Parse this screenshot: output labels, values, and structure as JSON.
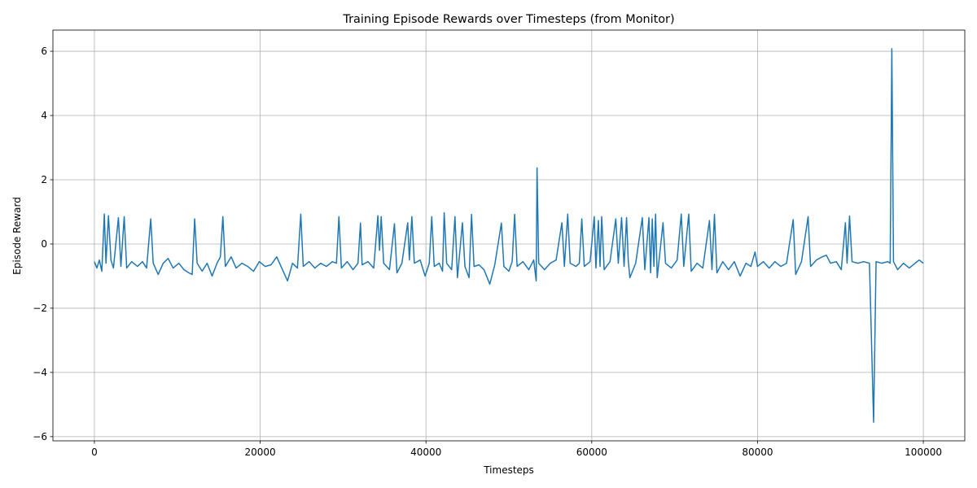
{
  "chart_data": {
    "type": "line",
    "title": "Training Episode Rewards over Timesteps (from Monitor)",
    "x_label": "Timesteps",
    "y_label": "Episode Reward",
    "color": "#1f77b4",
    "grid": true,
    "xlim": [
      -5000,
      105000
    ],
    "ylim": [
      -6.13,
      6.66
    ],
    "xticks": [
      0,
      20000,
      40000,
      60000,
      80000,
      100000
    ],
    "yticks": [
      {
        "value": -6,
        "label": "−6"
      },
      {
        "value": -4,
        "label": "−4"
      },
      {
        "value": -2,
        "label": "−2"
      },
      0,
      2,
      4,
      6
    ],
    "x": [
      0,
      300,
      600,
      900,
      1200,
      1400,
      1700,
      2000,
      2300,
      2900,
      3200,
      3600,
      3900,
      4500,
      5200,
      5800,
      6300,
      6800,
      7100,
      7700,
      8300,
      8900,
      9500,
      10200,
      10800,
      11400,
      11800,
      12100,
      12400,
      13000,
      13600,
      14200,
      14800,
      15200,
      15500,
      15800,
      16500,
      17100,
      17800,
      18500,
      19200,
      19900,
      20600,
      21300,
      22000,
      22600,
      23300,
      23900,
      24500,
      24900,
      25200,
      25900,
      26600,
      27300,
      28000,
      28700,
      29200,
      29500,
      29800,
      30500,
      31200,
      31800,
      32100,
      32300,
      33000,
      33700,
      34200,
      34400,
      34600,
      34900,
      35600,
      36200,
      36500,
      37100,
      37800,
      38000,
      38300,
      38600,
      39300,
      39900,
      40400,
      40700,
      41000,
      41600,
      42000,
      42200,
      42500,
      43100,
      43500,
      43800,
      44400,
      44700,
      45200,
      45500,
      45800,
      46400,
      47000,
      47700,
      48300,
      49100,
      49400,
      50000,
      50400,
      50700,
      51000,
      51700,
      52400,
      53000,
      53300,
      53400,
      53600,
      54300,
      55000,
      55700,
      56400,
      56700,
      57100,
      57400,
      58100,
      58500,
      58800,
      59100,
      59800,
      60300,
      60500,
      60800,
      61000,
      61200,
      61500,
      62200,
      62900,
      63200,
      63600,
      63900,
      64200,
      64400,
      64600,
      65300,
      66100,
      66400,
      66900,
      67100,
      67300,
      67500,
      67700,
      67900,
      68600,
      68900,
      69600,
      70300,
      70800,
      71100,
      71700,
      72000,
      72700,
      73400,
      74200,
      74500,
      74800,
      75100,
      75800,
      76500,
      77200,
      77900,
      78600,
      79200,
      79700,
      80000,
      80700,
      81400,
      82100,
      82800,
      83500,
      84300,
      84600,
      85300,
      86100,
      86400,
      87100,
      87800,
      88300,
      88800,
      89500,
      90100,
      90600,
      90800,
      91100,
      91400,
      92100,
      92800,
      93500,
      94000,
      94300,
      95000,
      95700,
      96000,
      96200,
      96400,
      96900,
      97600,
      98300,
      99000,
      99500,
      100000
    ],
    "values": [
      -0.55,
      -0.75,
      -0.5,
      -0.85,
      0.93,
      -0.6,
      0.88,
      -0.5,
      -0.75,
      0.82,
      -0.7,
      0.85,
      -0.75,
      -0.55,
      -0.7,
      -0.55,
      -0.75,
      0.78,
      -0.6,
      -0.95,
      -0.6,
      -0.45,
      -0.75,
      -0.6,
      -0.8,
      -0.9,
      -0.95,
      0.78,
      -0.6,
      -0.85,
      -0.6,
      -1.0,
      -0.6,
      -0.4,
      0.85,
      -0.7,
      -0.4,
      -0.75,
      -0.6,
      -0.7,
      -0.85,
      -0.55,
      -0.7,
      -0.65,
      -0.4,
      -0.75,
      -1.15,
      -0.6,
      -0.75,
      0.93,
      -0.7,
      -0.55,
      -0.75,
      -0.6,
      -0.7,
      -0.55,
      -0.6,
      0.85,
      -0.75,
      -0.55,
      -0.8,
      -0.6,
      0.65,
      -0.65,
      -0.55,
      -0.75,
      0.88,
      -0.2,
      0.85,
      -0.6,
      -0.8,
      0.63,
      -0.9,
      -0.6,
      0.66,
      -0.5,
      0.85,
      -0.6,
      -0.5,
      -1.0,
      -0.6,
      0.85,
      -0.7,
      -0.6,
      -0.85,
      0.97,
      -0.6,
      -0.8,
      0.85,
      -1.05,
      0.66,
      -0.7,
      -1.05,
      0.92,
      -0.7,
      -0.65,
      -0.8,
      -1.25,
      -0.65,
      0.65,
      -0.7,
      -0.85,
      -0.55,
      0.92,
      -0.7,
      -0.55,
      -0.8,
      -0.5,
      -1.15,
      2.37,
      -0.6,
      -0.8,
      -0.6,
      -0.5,
      0.66,
      -0.7,
      0.93,
      -0.6,
      -0.7,
      -0.6,
      0.78,
      -0.7,
      -0.55,
      0.85,
      -0.75,
      0.73,
      -0.7,
      0.85,
      -0.8,
      -0.55,
      0.78,
      -0.6,
      0.82,
      -0.7,
      0.82,
      -0.5,
      -1.05,
      -0.6,
      0.82,
      -0.8,
      0.82,
      -0.9,
      0.78,
      -0.7,
      0.93,
      -1.05,
      0.66,
      -0.6,
      -0.75,
      -0.5,
      0.93,
      -0.7,
      0.93,
      -0.85,
      -0.6,
      -0.75,
      0.73,
      -0.8,
      0.92,
      -0.9,
      -0.55,
      -0.8,
      -0.55,
      -1.0,
      -0.6,
      -0.7,
      -0.25,
      -0.7,
      -0.55,
      -0.75,
      -0.55,
      -0.7,
      -0.6,
      0.76,
      -0.95,
      -0.55,
      0.85,
      -0.7,
      -0.5,
      -0.4,
      -0.35,
      -0.6,
      -0.55,
      -0.8,
      0.66,
      -0.6,
      0.87,
      -0.55,
      -0.6,
      -0.55,
      -0.6,
      -5.55,
      -0.55,
      -0.6,
      -0.55,
      -0.6,
      6.08,
      -0.55,
      -0.8,
      -0.6,
      -0.75,
      -0.6,
      -0.5,
      -0.6
    ]
  }
}
